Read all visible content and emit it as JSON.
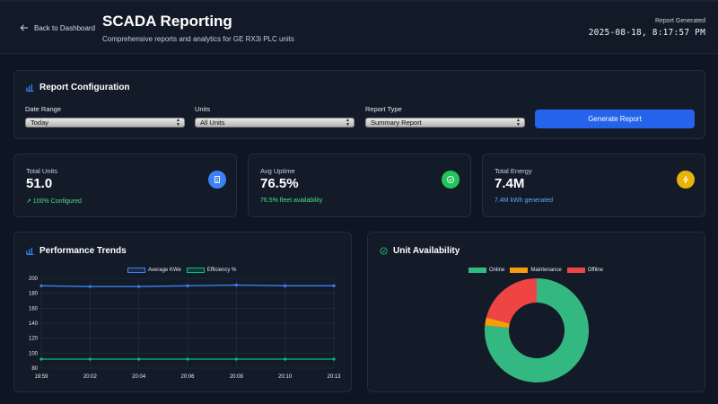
{
  "header": {
    "back_label": "Back to Dashboard",
    "title": "SCADA Reporting",
    "subtitle": "Comprehensive reports and analytics for GE RX3i PLC units",
    "generated_label": "Report Generated",
    "generated_time": "2025-08-18, 8:17:57 PM"
  },
  "config": {
    "title": "Report Configuration",
    "date_range_label": "Date Range",
    "date_range_value": "Today",
    "units_label": "Units",
    "units_value": "All Units",
    "report_type_label": "Report Type",
    "report_type_value": "Summary Report",
    "generate_label": "Generate Report"
  },
  "stats": [
    {
      "label": "Total Units",
      "value": "51.0",
      "note": "↗ 100% Configured",
      "color": "#3b82f6",
      "note_color": "#4ade80",
      "icon": "building-icon"
    },
    {
      "label": "Avg Uptime",
      "value": "76.5%",
      "note": "76.5% fleet availability",
      "color": "#22c55e",
      "note_color": "#4ade80",
      "icon": "check-circle-icon"
    },
    {
      "label": "Total Energy",
      "value": "7.4M",
      "note": "7.4M kWh generated",
      "color": "#eab308",
      "note_color": "#60a5fa",
      "icon": "lightning-icon"
    }
  ],
  "performance": {
    "title": "Performance Trends"
  },
  "availability": {
    "title": "Unit Availability"
  },
  "chart_data": [
    {
      "type": "line",
      "title": "Performance Trends",
      "x": [
        "19:59",
        "20:02",
        "20:04",
        "20:06",
        "20:08",
        "20:10",
        "20:13"
      ],
      "series": [
        {
          "name": "Average KWe",
          "color": "#3b82f6",
          "values": [
            190,
            189,
            189,
            190,
            191,
            190,
            190
          ]
        },
        {
          "name": "Efficiency %",
          "color": "#10b981",
          "values": [
            92,
            92,
            92,
            92,
            92,
            92,
            92
          ]
        }
      ],
      "yticks": [
        80,
        100,
        120,
        140,
        160,
        180,
        200
      ],
      "ylim": [
        80,
        200
      ],
      "grid": true,
      "legend": "top-center"
    },
    {
      "type": "pie",
      "title": "Unit Availability",
      "categories": [
        "Online",
        "Maintenance",
        "Offline"
      ],
      "values": [
        76.5,
        2.5,
        21.0
      ],
      "colors": [
        "#34b882",
        "#f59e0b",
        "#ef4444"
      ],
      "legend": "top-center"
    }
  ]
}
